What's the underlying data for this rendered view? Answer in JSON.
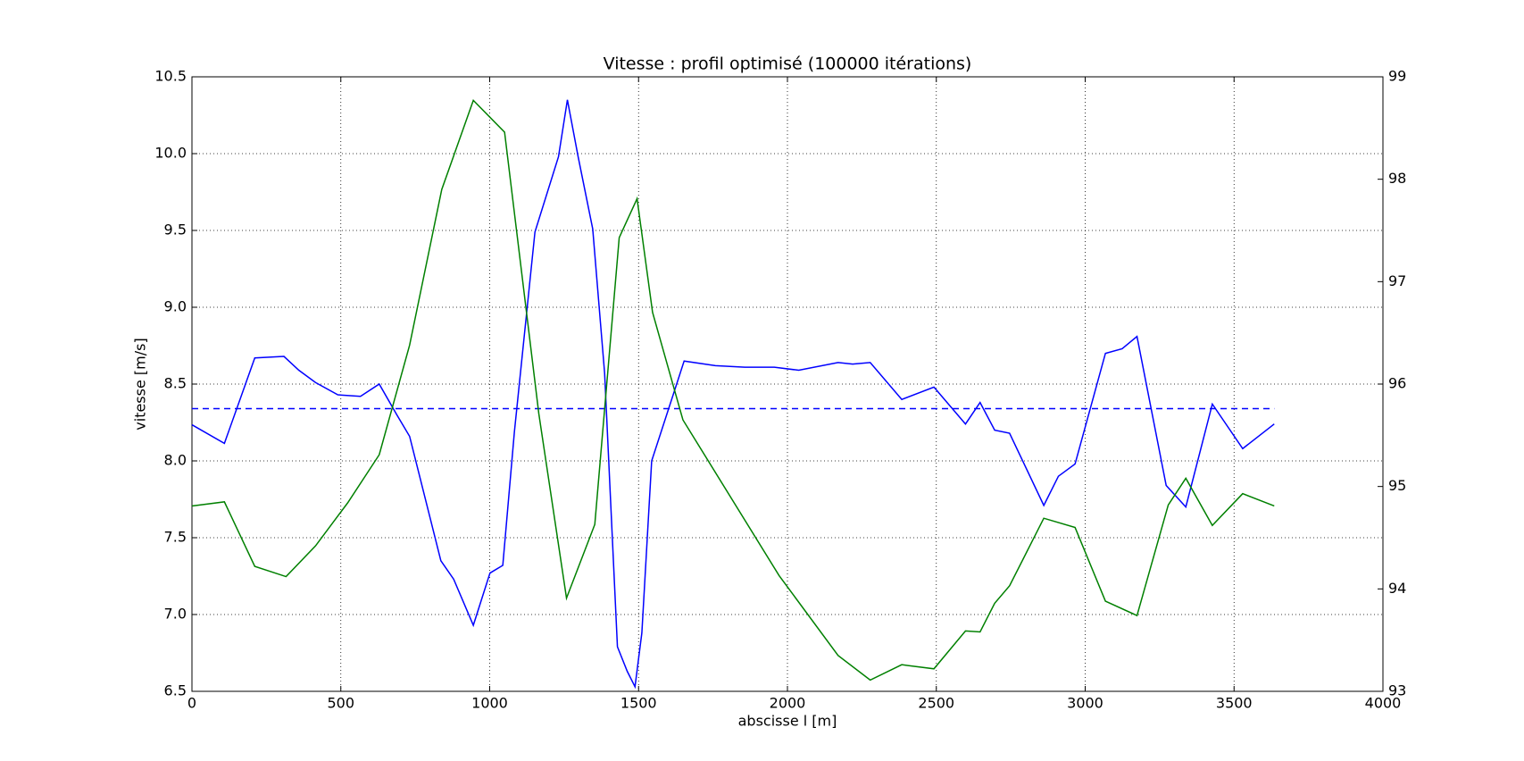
{
  "chart_data": {
    "type": "line",
    "title": "Vitesse : profil optimisé (100000 itérations)",
    "x_label": "abscisse l [m]",
    "y_label": "vitesse [m/s]",
    "xlim": [
      0,
      4000
    ],
    "xticks": [
      0,
      500,
      1000,
      1500,
      2000,
      2500,
      3000,
      3500,
      4000
    ],
    "ylim": [
      6.5,
      10.5
    ],
    "yticks": [
      6.5,
      {
        "value": 7,
        "label": "7.0"
      },
      7.5,
      {
        "value": 8,
        "label": "8.0"
      },
      8.5,
      {
        "value": 9,
        "label": "9.0"
      },
      9.5,
      {
        "value": 10,
        "label": "10.0"
      },
      10.5
    ],
    "y2lim": [
      93,
      99
    ],
    "y2ticks": [
      93,
      94,
      95,
      96,
      97,
      98,
      99
    ],
    "grid": true,
    "series": [
      {
        "color": "#0000ff",
        "dashed": false,
        "x": [
          0,
          109,
          211,
          309,
          359,
          415,
          490,
          566,
          629,
          688,
          731,
          836,
          879,
          945,
          1001,
          1044,
          1083,
          1152,
          1231,
          1261,
          1297,
          1346,
          1386,
          1429,
          1462,
          1488,
          1511,
          1544,
          1653,
          1758,
          1857,
          1956,
          2038,
          2170,
          2219,
          2278,
          2384,
          2492,
          2598,
          2647,
          2696,
          2746,
          2861,
          2910,
          2966,
          3068,
          3124,
          3174,
          3272,
          3338,
          3427,
          3529,
          3635
        ],
        "values": [
          8.235,
          8.114,
          8.67,
          8.68,
          8.59,
          8.51,
          8.43,
          8.42,
          8.5,
          8.3,
          8.16,
          7.35,
          7.23,
          6.93,
          7.27,
          7.32,
          8.19,
          9.49,
          9.98,
          10.35,
          9.98,
          9.51,
          8.57,
          6.79,
          6.63,
          6.53,
          6.88,
          8.0,
          8.65,
          8.62,
          8.61,
          8.61,
          8.59,
          8.64,
          8.63,
          8.64,
          8.4,
          8.48,
          8.24,
          8.38,
          8.2,
          8.18,
          7.71,
          7.9,
          7.98,
          8.7,
          8.73,
          8.81,
          7.84,
          7.7,
          8.37,
          8.08,
          8.24
        ]
      },
      {
        "color": "#0000ff",
        "dashed": true,
        "x": [
          0,
          3635
        ],
        "values": [
          8.34,
          8.34
        ]
      },
      {
        "color": "#008000",
        "dashed": false,
        "axis": "y2",
        "x": [
          0,
          109,
          211,
          316,
          415,
          523,
          629,
          731,
          839,
          945,
          1050,
          1165,
          1258,
          1353,
          1435,
          1495,
          1547,
          1649,
          1972,
          2170,
          2278,
          2384,
          2492,
          2598,
          2647,
          2696,
          2746,
          2861,
          2966,
          3068,
          3174,
          3279,
          3338,
          3427,
          3529,
          3635
        ],
        "values": [
          94.81,
          94.85,
          94.22,
          94.12,
          94.42,
          94.84,
          95.31,
          96.38,
          97.9,
          98.77,
          98.46,
          95.71,
          93.91,
          94.63,
          97.43,
          97.81,
          96.7,
          95.65,
          94.13,
          93.35,
          93.11,
          93.26,
          93.22,
          93.59,
          93.58,
          93.86,
          94.03,
          94.69,
          94.6,
          93.88,
          93.74,
          94.82,
          95.08,
          94.62,
          94.93,
          94.81
        ]
      }
    ]
  }
}
